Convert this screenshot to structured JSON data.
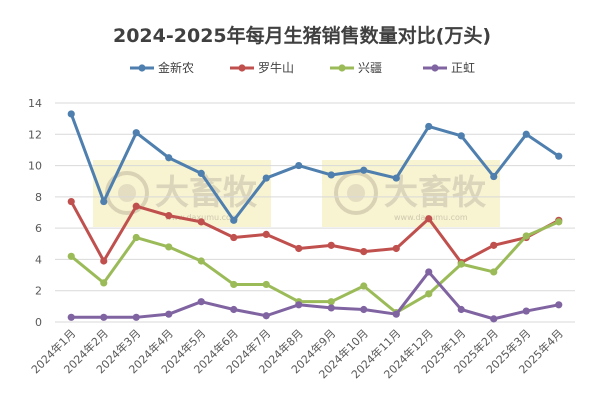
{
  "chart_data": {
    "type": "line",
    "title": "2024-2025年每月生猪销售数量对比(万头)",
    "categories": [
      "2024年1月",
      "2024年2月",
      "2024年3月",
      "2024年4月",
      "2024年5月",
      "2024年6月",
      "2024年7月",
      "2024年8月",
      "2024年9月",
      "2024年10月",
      "2024年11月",
      "2024年12月",
      "2025年1月",
      "2025年2月",
      "2025年3月",
      "2025年4月"
    ],
    "ylim": [
      0,
      14
    ],
    "yticks": [
      0,
      2,
      4,
      6,
      8,
      10,
      12,
      14
    ],
    "grid": true,
    "legend_position": "top",
    "series": [
      {
        "name": "金新农",
        "color": "#4e7fae",
        "values": [
          13.3,
          7.7,
          12.1,
          10.5,
          9.5,
          6.5,
          9.2,
          10.0,
          9.4,
          9.7,
          9.2,
          12.5,
          11.9,
          9.3,
          12.0,
          10.6
        ]
      },
      {
        "name": "罗牛山",
        "color": "#c0504d",
        "values": [
          7.7,
          3.9,
          7.4,
          6.8,
          6.4,
          5.4,
          5.6,
          4.7,
          4.9,
          4.5,
          4.7,
          6.6,
          3.8,
          4.9,
          5.4,
          6.5
        ]
      },
      {
        "name": "兴疆",
        "color": "#9bbb59",
        "values": [
          4.2,
          2.5,
          5.4,
          4.8,
          3.9,
          2.4,
          2.4,
          1.3,
          1.3,
          2.3,
          0.6,
          1.8,
          3.7,
          3.2,
          5.5,
          6.4
        ]
      },
      {
        "name": "正虹",
        "color": "#8064a2",
        "values": [
          0.3,
          0.3,
          0.3,
          0.5,
          1.3,
          0.8,
          0.4,
          1.1,
          0.9,
          0.8,
          0.5,
          3.2,
          0.8,
          0.2,
          0.7,
          1.1
        ]
      }
    ],
    "watermark": {
      "brand": "大畜牧",
      "site": "www.daxumu.com"
    }
  }
}
